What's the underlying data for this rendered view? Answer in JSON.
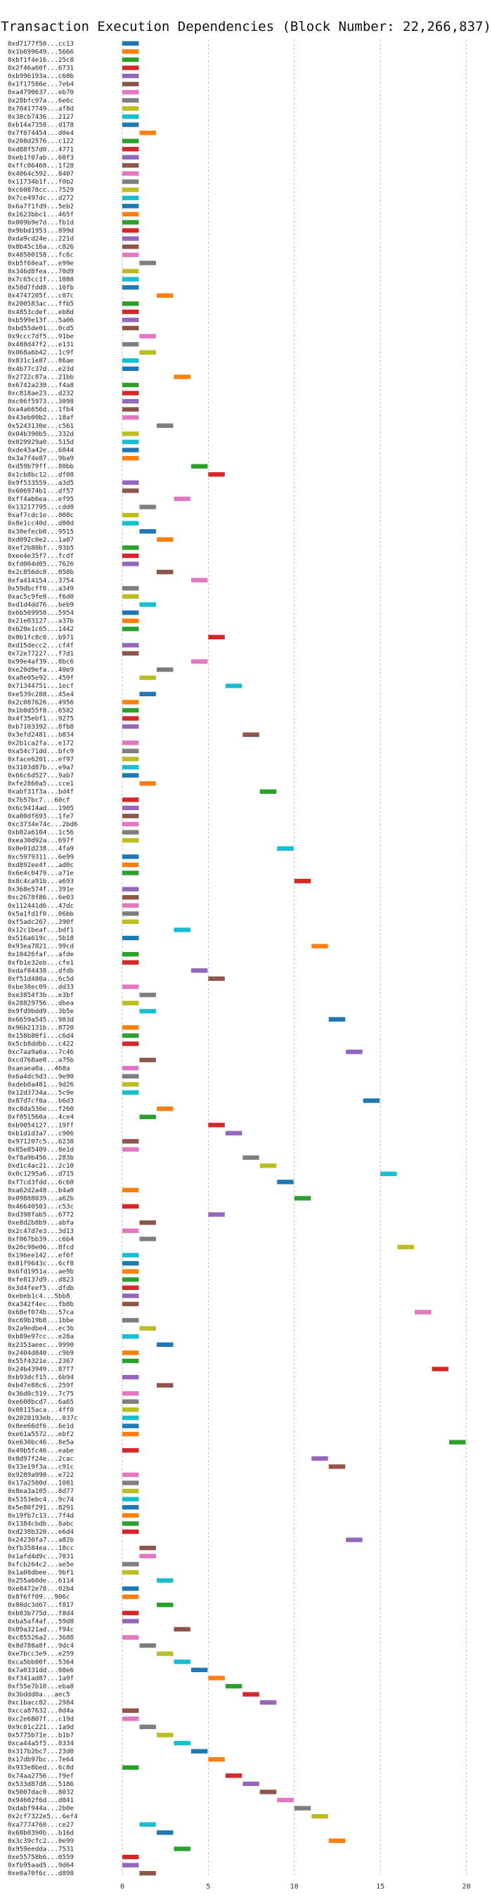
{
  "chart_data": {
    "type": "gantt",
    "title": "Transaction Execution Dependencies (Block Number: 22,266,837)",
    "xlabel": "",
    "ylabel": "",
    "xlim": [
      -2,
      21
    ],
    "xticks": [
      0,
      5,
      10,
      15,
      20
    ],
    "grid": "vertical dashed",
    "bar_width": 1,
    "colors": [
      "#1f77b4",
      "#ff7f0e",
      "#2ca02c",
      "#d62728",
      "#9467bd",
      "#8c564b",
      "#e377c2",
      "#7f7f7f",
      "#bcbd22",
      "#17becf"
    ],
    "tasks": [
      {
        "label": "0xd7177f50...cc13",
        "start": 0
      },
      {
        "label": "0x1b699649...5666",
        "start": 0
      },
      {
        "label": "0xbf1f4e16...25c8",
        "start": 0
      },
      {
        "label": "0x2f46a60f...6731",
        "start": 0
      },
      {
        "label": "0xb996193a...c60b",
        "start": 0
      },
      {
        "label": "0x1f17586e...7eb4",
        "start": 0
      },
      {
        "label": "0xa4790637...eb70",
        "start": 0
      },
      {
        "label": "0x28bfc97a...6e6c",
        "start": 0
      },
      {
        "label": "0x70417749...af8d",
        "start": 0
      },
      {
        "label": "0x38cb7436...2127",
        "start": 0
      },
      {
        "label": "0xb14a7358...d178",
        "start": 0
      },
      {
        "label": "0x7f074454...d0e4",
        "start": 1
      },
      {
        "label": "0x208d2576...c122",
        "start": 0
      },
      {
        "label": "0xd88f57d0...4771",
        "start": 0
      },
      {
        "label": "0xeb1f07ab...60f3",
        "start": 0
      },
      {
        "label": "0xffc06468...1f28",
        "start": 0
      },
      {
        "label": "0x4064c592...8407",
        "start": 0
      },
      {
        "label": "0x11734b1f...f0b2",
        "start": 0
      },
      {
        "label": "0xc60878cc...7529",
        "start": 0
      },
      {
        "label": "0x7ce497dc...d272",
        "start": 0
      },
      {
        "label": "0x6a7f1fd9...5eb2",
        "start": 0
      },
      {
        "label": "0x1623bbc1...465f",
        "start": 0
      },
      {
        "label": "0x009b9e7d...fb1d",
        "start": 0
      },
      {
        "label": "0x9bbd1953...899d",
        "start": 0
      },
      {
        "label": "0xda9cd24e...221d",
        "start": 0
      },
      {
        "label": "0x8b45c16a...c826",
        "start": 0
      },
      {
        "label": "0x40580158...fc6c",
        "start": 0
      },
      {
        "label": "0xb5f60eaf...e99e",
        "start": 1
      },
      {
        "label": "0x346d8fea...70d9",
        "start": 0
      },
      {
        "label": "0x7c65cc1f...1088",
        "start": 0
      },
      {
        "label": "0x58d7fdd8...10fb",
        "start": 0
      },
      {
        "label": "0x4747205f...c07c",
        "start": 2
      },
      {
        "label": "0x200583ac...ffb5",
        "start": 0
      },
      {
        "label": "0x4853cdef...eb8d",
        "start": 0
      },
      {
        "label": "0xb599e13f...5a06",
        "start": 0
      },
      {
        "label": "0xbd55de01...0cd5",
        "start": 0
      },
      {
        "label": "0x9ccc7df5...91be",
        "start": 1
      },
      {
        "label": "0x488d47f2...e131",
        "start": 0
      },
      {
        "label": "0x068a6b42...1c9f",
        "start": 1
      },
      {
        "label": "0x831c1e87...86ae",
        "start": 0
      },
      {
        "label": "0x4b77c37d...e23d",
        "start": 0
      },
      {
        "label": "0x2722c87a...21bb",
        "start": 3
      },
      {
        "label": "0x6742a230...f4a8",
        "start": 0
      },
      {
        "label": "0xc818ae23...d232",
        "start": 0
      },
      {
        "label": "0xc06f5973...3098",
        "start": 0
      },
      {
        "label": "0xa4a6656d...1fb4",
        "start": 0
      },
      {
        "label": "0x43eb00b2...18af",
        "start": 0
      },
      {
        "label": "0x5243130e...c561",
        "start": 2
      },
      {
        "label": "0x04b390b5...332d",
        "start": 0
      },
      {
        "label": "0x029929a0...515d",
        "start": 0
      },
      {
        "label": "0xde43a42e...6844",
        "start": 0
      },
      {
        "label": "0x3a7f4e87...9ba9",
        "start": 0
      },
      {
        "label": "0xd59b79ff...80bb",
        "start": 4
      },
      {
        "label": "0x1cb8bc12...df08",
        "start": 5
      },
      {
        "label": "0x9f533559...a3d5",
        "start": 0
      },
      {
        "label": "0x606974b1...df57",
        "start": 0
      },
      {
        "label": "0xff4ab6ea...ef95",
        "start": 3
      },
      {
        "label": "0x13217795...cdd8",
        "start": 1
      },
      {
        "label": "0xaf7cdc1e...808c",
        "start": 0
      },
      {
        "label": "0x8e1cc40d...d80d",
        "start": 0
      },
      {
        "label": "0x30efecb0...9515",
        "start": 1
      },
      {
        "label": "0xd092c0e2...1a07",
        "start": 2
      },
      {
        "label": "0xef2b80bf...93b5",
        "start": 0
      },
      {
        "label": "0xee4e35f7...fcdf",
        "start": 0
      },
      {
        "label": "0xfd004d05...7626",
        "start": 0
      },
      {
        "label": "0x2c856dc8...058b",
        "start": 2
      },
      {
        "label": "0xfa414154...3754",
        "start": 4
      },
      {
        "label": "0x59dbcff0...a349",
        "start": 0
      },
      {
        "label": "0xac5c9fe8...f6d0",
        "start": 0
      },
      {
        "label": "0xd1d4dd76...beb9",
        "start": 1
      },
      {
        "label": "0x6b509958...5954",
        "start": 0
      },
      {
        "label": "0x21e03127...a37b",
        "start": 0
      },
      {
        "label": "0x620e1c65...1442",
        "start": 0
      },
      {
        "label": "0x0b1fc8c0...b971",
        "start": 5
      },
      {
        "label": "0xd15decc2...cf4f",
        "start": 0
      },
      {
        "label": "0x72e77227...f7d1",
        "start": 0
      },
      {
        "label": "0x99e4af39...8bc6",
        "start": 4
      },
      {
        "label": "0xe20d9efa...40e9",
        "start": 2
      },
      {
        "label": "0xa8e05e92...459f",
        "start": 1
      },
      {
        "label": "0x71344751...1ecf",
        "start": 6
      },
      {
        "label": "0xe539c288...45e4",
        "start": 1
      },
      {
        "label": "0x2c087626...4956",
        "start": 0
      },
      {
        "label": "0x1b0d55f8...6582",
        "start": 0
      },
      {
        "label": "0x4f35ebf1...9275",
        "start": 0
      },
      {
        "label": "0xb7103392...8fb8",
        "start": 0
      },
      {
        "label": "0x3efd2481...b834",
        "start": 7
      },
      {
        "label": "0x2b1ca2fa...e172",
        "start": 0
      },
      {
        "label": "0xa54c71dd...bfc9",
        "start": 0
      },
      {
        "label": "0xface6201...ef97",
        "start": 0
      },
      {
        "label": "0x3103d87b...e9a7",
        "start": 0
      },
      {
        "label": "0x66c6d527...9ab7",
        "start": 0
      },
      {
        "label": "0xfe2860a5...cce1",
        "start": 1
      },
      {
        "label": "0xabf31f3a...bd4f",
        "start": 8
      },
      {
        "label": "0x7b57bc7...60cf",
        "start": 0
      },
      {
        "label": "0x6c9414ad...1905",
        "start": 0
      },
      {
        "label": "0xa00df693...1fe7",
        "start": 0
      },
      {
        "label": "0xc3734e74c...2bd6",
        "start": 0
      },
      {
        "label": "0xb02a6104...1c56",
        "start": 0
      },
      {
        "label": "0xea30d92a...697f",
        "start": 0
      },
      {
        "label": "0x0e01d238...4fa9",
        "start": 9
      },
      {
        "label": "0xc5979311...6e99",
        "start": 0
      },
      {
        "label": "0xd892ee4f...ad0c",
        "start": 0
      },
      {
        "label": "0x6e4c0479...a71e",
        "start": 0
      },
      {
        "label": "0x8c4ca91b...a693",
        "start": 10
      },
      {
        "label": "0x368e574f...391e",
        "start": 0
      },
      {
        "label": "0xc2678f86...6e03",
        "start": 0
      },
      {
        "label": "0x112441d6...47dc",
        "start": 0
      },
      {
        "label": "0x5a1fd1f0...06bb",
        "start": 0
      },
      {
        "label": "0xf5adc267...390f",
        "start": 0
      },
      {
        "label": "0x12c1beaf...bdf1",
        "start": 3
      },
      {
        "label": "0x516a619c...5b18",
        "start": 0
      },
      {
        "label": "0x93ea7821...99cd",
        "start": 11
      },
      {
        "label": "0x10426faf...afde",
        "start": 0
      },
      {
        "label": "0xfb1e32eb...cfe1",
        "start": 0
      },
      {
        "label": "0xdaf04438...dfdb",
        "start": 4
      },
      {
        "label": "0xf51d480a...6c5d",
        "start": 5
      },
      {
        "label": "0xbe38ec09...dd33",
        "start": 0
      },
      {
        "label": "0xe3854f3b...e3bf",
        "start": 1
      },
      {
        "label": "0x28829756...dbea",
        "start": 0
      },
      {
        "label": "0x9fd9bdd9...3b5e",
        "start": 1
      },
      {
        "label": "0x6659a545...983d",
        "start": 12
      },
      {
        "label": "0x96b2131b...8720",
        "start": 0
      },
      {
        "label": "0x158b80f1...c6d4",
        "start": 0
      },
      {
        "label": "0x5cb8ddbb...c422",
        "start": 0
      },
      {
        "label": "0xc7aa9a6a...7c46",
        "start": 13
      },
      {
        "label": "0xcd768ae0...a75b",
        "start": 1
      },
      {
        "label": "0xaeaea0a...468a",
        "start": 0
      },
      {
        "label": "0x6a4dc9d3...9e90",
        "start": 0
      },
      {
        "label": "0xdeb0a481...9d26",
        "start": 0
      },
      {
        "label": "0x12d3734a...5c9e",
        "start": 0
      },
      {
        "label": "0x87d7cf0a...b6d3",
        "start": 14
      },
      {
        "label": "0xc8da536e...f260",
        "start": 2
      },
      {
        "label": "0xf051560a...4ce4",
        "start": 1
      },
      {
        "label": "0xb9054127...19ff",
        "start": 5
      },
      {
        "label": "0xb1d1d3a7...c906",
        "start": 6
      },
      {
        "label": "0x971207c5...6238",
        "start": 0
      },
      {
        "label": "0x85e85409...8e1d",
        "start": 0
      },
      {
        "label": "0xf8a9b456...283b",
        "start": 7
      },
      {
        "label": "0xd1c4ac21...2c10",
        "start": 8
      },
      {
        "label": "0x0c1295a6...d715",
        "start": 15
      },
      {
        "label": "0xf7cd3fdd...6c60",
        "start": 9
      },
      {
        "label": "0xa62d2a48...b4a0",
        "start": 0
      },
      {
        "label": "0x09888039...a62b",
        "start": 10
      },
      {
        "label": "0x46640503...c53c",
        "start": 0
      },
      {
        "label": "0xd398fab5...6772",
        "start": 5
      },
      {
        "label": "0xe8d2b8b9...abfa",
        "start": 1
      },
      {
        "label": "0x2c47d7e3...3d13",
        "start": 0
      },
      {
        "label": "0xf067bb39...c6b4",
        "start": 1
      },
      {
        "label": "0x20c90e06...8fcd",
        "start": 16
      },
      {
        "label": "0x196ee142...ef6f",
        "start": 0
      },
      {
        "label": "0x81f9643c...6cf8",
        "start": 0
      },
      {
        "label": "0x6fd1951a...ae9b",
        "start": 0
      },
      {
        "label": "0xfe8137d9...d823",
        "start": 0
      },
      {
        "label": "0x3d4feef5...dfdb",
        "start": 0
      },
      {
        "label": "0xebeb1c4...5bb8",
        "start": 0
      },
      {
        "label": "0xa342f4ec...fb8b",
        "start": 0
      },
      {
        "label": "0x68ef074b...57ca",
        "start": 17
      },
      {
        "label": "0xc69b19b8...1bbe",
        "start": 0
      },
      {
        "label": "0x2a9edbe4...ec3b",
        "start": 1
      },
      {
        "label": "0xb89e97cc...e28a",
        "start": 0
      },
      {
        "label": "0x2353aeec...9990",
        "start": 2
      },
      {
        "label": "0x2404d840...c9b9",
        "start": 0
      },
      {
        "label": "0x55f4321e...2367",
        "start": 0
      },
      {
        "label": "0x24b43949...87f7",
        "start": 18
      },
      {
        "label": "0xb93dcf15...6b94",
        "start": 0
      },
      {
        "label": "0xb47e88c6...259f",
        "start": 2
      },
      {
        "label": "0x36d0c519...7c75",
        "start": 0
      },
      {
        "label": "0xe608bcd7...6a65",
        "start": 0
      },
      {
        "label": "0x08115aca...4ff0",
        "start": 0
      },
      {
        "label": "0x2028193eb...037c",
        "start": 0
      },
      {
        "label": "0x8ee66df6...6e1d",
        "start": 0
      },
      {
        "label": "0xe61a5572...ebf2",
        "start": 0
      },
      {
        "label": "0xe630bc46...8e5a",
        "start": 19
      },
      {
        "label": "0x49b5fc46...eabe",
        "start": 0
      },
      {
        "label": "0x8d97f24e...2cac",
        "start": 11
      },
      {
        "label": "0x33e19f3a...c91c",
        "start": 12
      },
      {
        "label": "0x9289a990...e722",
        "start": 0
      },
      {
        "label": "0x17a2500d...1081",
        "start": 0
      },
      {
        "label": "0x8ea3a105...8d77",
        "start": 0
      },
      {
        "label": "0x5353ebc4...9c74",
        "start": 0
      },
      {
        "label": "0x5e80f291...8291",
        "start": 0
      },
      {
        "label": "0x19fb7c13...7f4d",
        "start": 0
      },
      {
        "label": "0x1384cbdb...8abc",
        "start": 0
      },
      {
        "label": "0xd238b320...e6d4",
        "start": 0
      },
      {
        "label": "0x24230fa7...a82b",
        "start": 13
      },
      {
        "label": "0xfb3584ea...18cc",
        "start": 1
      },
      {
        "label": "0x1afd4d9c...7031",
        "start": 1
      },
      {
        "label": "0xfcb264c2...ae5e",
        "start": 0
      },
      {
        "label": "0x1a08dbee...9bf1",
        "start": 0
      },
      {
        "label": "0x255a60de...6114",
        "start": 2
      },
      {
        "label": "0xe8472e78...02b4",
        "start": 0
      },
      {
        "label": "0x8f6ff09...906c",
        "start": 0
      },
      {
        "label": "0x80dc3d67...f817",
        "start": 2
      },
      {
        "label": "0xb83b775d...f8d4",
        "start": 0
      },
      {
        "label": "0xba5af4af...59d8",
        "start": 0
      },
      {
        "label": "0x89a321ad...f94c",
        "start": 3
      },
      {
        "label": "0xc85526a2...3688",
        "start": 0
      },
      {
        "label": "0x8d788a8f...9dc4",
        "start": 1
      },
      {
        "label": "0xe7bcc3e9...e259",
        "start": 2
      },
      {
        "label": "0xca5bb00f...5364",
        "start": 3
      },
      {
        "label": "0x7a0331dd...08e6",
        "start": 4
      },
      {
        "label": "0xf341ad87...1a9f",
        "start": 5
      },
      {
        "label": "0xf55e7b10...eba8",
        "start": 6
      },
      {
        "label": "0x3bddd0a...aec5",
        "start": 7
      },
      {
        "label": "0xc1bacc82...2984",
        "start": 8
      },
      {
        "label": "0xcca87632...0d4a",
        "start": 0
      },
      {
        "label": "0xc2e6807f...c19d",
        "start": 0
      },
      {
        "label": "0x9c81c221...1a9d",
        "start": 1
      },
      {
        "label": "0x5775b71e...b1b7",
        "start": 2
      },
      {
        "label": "0xca44a5f5...8334",
        "start": 3
      },
      {
        "label": "0x317b2bc7...23d0",
        "start": 4
      },
      {
        "label": "0x17db97bc...7e64",
        "start": 5
      },
      {
        "label": "0x933e8bed...6c8d",
        "start": 0
      },
      {
        "label": "0x74aa2756...f9ef",
        "start": 6
      },
      {
        "label": "0x533d87d8...5186",
        "start": 7
      },
      {
        "label": "0x5007dac0...8032",
        "start": 8
      },
      {
        "label": "0x94602f6d...d041",
        "start": 9
      },
      {
        "label": "0xdabf944a...2b0e",
        "start": 10
      },
      {
        "label": "0x2cf7322e5...6ef4",
        "start": 11
      },
      {
        "label": "0xa7774760...ce27",
        "start": 1
      },
      {
        "label": "0x68b0390b...b16d",
        "start": 2
      },
      {
        "label": "0x3c39cfc2...0e99",
        "start": 12
      },
      {
        "label": "0x959eedda...7531",
        "start": 3
      },
      {
        "label": "0xe55758b6...0559",
        "start": 0
      },
      {
        "label": "0xfb95aad5...9d64",
        "start": 0
      },
      {
        "label": "0xe0a70f6c...d898",
        "start": 1
      }
    ]
  }
}
